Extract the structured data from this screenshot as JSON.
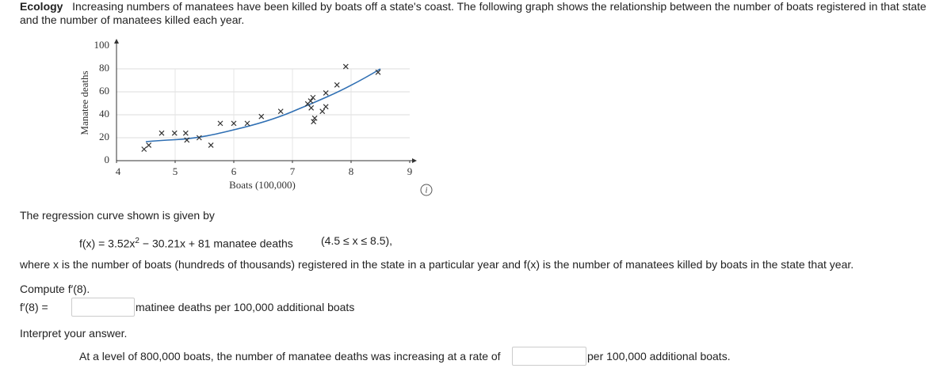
{
  "header": {
    "label": "Ecology",
    "text": "Increasing numbers of manatees have been killed by boats off a state's coast. The following graph shows the relationship between the number of boats registered in that state and the number of manatees killed each year."
  },
  "chart_data": {
    "type": "scatter",
    "x_label": "Boats (100,000)",
    "y_label": "Manatee deaths",
    "x": [
      4.47,
      4.55,
      4.77,
      4.99,
      5.18,
      5.2,
      5.41,
      5.61,
      5.77,
      6.0,
      6.23,
      6.47,
      6.8,
      7.26,
      7.31,
      7.35,
      7.32,
      7.38,
      7.36,
      7.51,
      7.57,
      7.57,
      7.76,
      7.91,
      8.46
    ],
    "y": [
      10,
      13.5,
      24,
      24,
      24,
      18,
      20,
      13.5,
      32.5,
      32.5,
      32.5,
      38.5,
      43,
      49.5,
      52,
      55,
      46,
      37,
      34,
      43,
      47,
      59,
      66,
      82,
      77
    ],
    "xlim": [
      4,
      9
    ],
    "ylim": [
      0,
      100
    ],
    "xticks": [
      4,
      5,
      6,
      7,
      8,
      9
    ],
    "yticks": [
      0,
      20,
      40,
      60,
      80,
      100
    ],
    "color": "#2f6fb3",
    "grid": true
  },
  "intro": "The regression curve shown is given by",
  "formula": {
    "lhs": "f(x) = 3.52x",
    "exponent": "2",
    "rhs": " − 30.21x + 81 manatee deaths",
    "domain": "(4.5 ≤ x ≤ 8.5),"
  },
  "explanation": "where x is the number of boats (hundreds of thousands) registered in the state in a particular year and f(x) is the number of manatees killed by boats in the state that year.",
  "question": "Compute f′(8).",
  "answer": {
    "label": "f′(8) =",
    "unit": "matinee deaths per 100,000 additional boats"
  },
  "interpret": "Interpret your answer.",
  "interpretation": {
    "before": "At a level of 800,000 boats, the number of manatee deaths was increasing at a rate of",
    "after": "per 100,000 additional boats."
  }
}
